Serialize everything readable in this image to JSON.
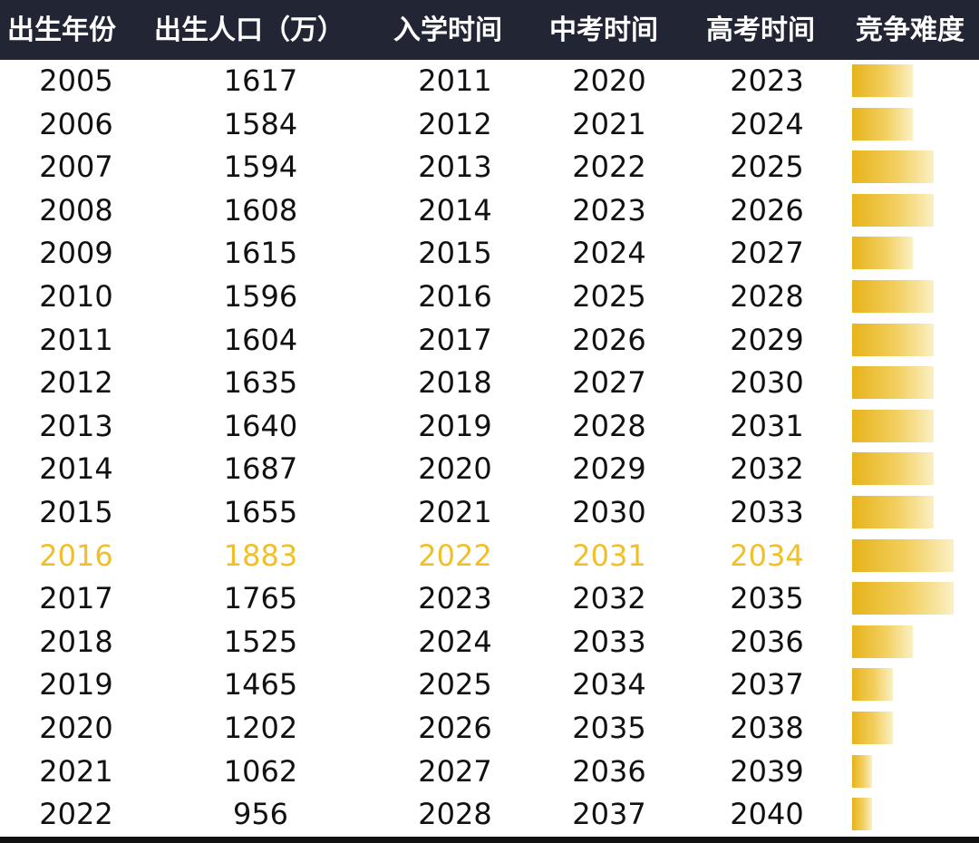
{
  "table": {
    "headers": [
      "出生年份",
      "出生人口（万）",
      "入学时间",
      "中考时间",
      "高考时间",
      "竞争难度"
    ]
  },
  "colors": {
    "header_bg": "#222634",
    "header_text": "#ffffff",
    "highlight_text": "#f0bf2a",
    "bar_gold": "#e7b31a"
  },
  "chart_data": {
    "type": "table",
    "columns": [
      "出生年份",
      "出生人口（万）",
      "入学时间",
      "中考时间",
      "高考时间",
      "竞争难度"
    ],
    "highlight_row": 11,
    "difficulty_max": 5,
    "rows": [
      {
        "birth_year": "2005",
        "population": "1617",
        "school": "2011",
        "zhongkao": "2020",
        "gaokao": "2023",
        "difficulty": 3
      },
      {
        "birth_year": "2006",
        "population": "1584",
        "school": "2012",
        "zhongkao": "2021",
        "gaokao": "2024",
        "difficulty": 3
      },
      {
        "birth_year": "2007",
        "population": "1594",
        "school": "2013",
        "zhongkao": "2022",
        "gaokao": "2025",
        "difficulty": 4
      },
      {
        "birth_year": "2008",
        "population": "1608",
        "school": "2014",
        "zhongkao": "2023",
        "gaokao": "2026",
        "difficulty": 4
      },
      {
        "birth_year": "2009",
        "population": "1615",
        "school": "2015",
        "zhongkao": "2024",
        "gaokao": "2027",
        "difficulty": 3
      },
      {
        "birth_year": "2010",
        "population": "1596",
        "school": "2016",
        "zhongkao": "2025",
        "gaokao": "2028",
        "difficulty": 4
      },
      {
        "birth_year": "2011",
        "population": "1604",
        "school": "2017",
        "zhongkao": "2026",
        "gaokao": "2029",
        "difficulty": 4
      },
      {
        "birth_year": "2012",
        "population": "1635",
        "school": "2018",
        "zhongkao": "2027",
        "gaokao": "2030",
        "difficulty": 4
      },
      {
        "birth_year": "2013",
        "population": "1640",
        "school": "2019",
        "zhongkao": "2028",
        "gaokao": "2031",
        "difficulty": 4
      },
      {
        "birth_year": "2014",
        "population": "1687",
        "school": "2020",
        "zhongkao": "2029",
        "gaokao": "2032",
        "difficulty": 4
      },
      {
        "birth_year": "2015",
        "population": "1655",
        "school": "2021",
        "zhongkao": "2030",
        "gaokao": "2033",
        "difficulty": 4
      },
      {
        "birth_year": "2016",
        "population": "1883",
        "school": "2022",
        "zhongkao": "2031",
        "gaokao": "2034",
        "difficulty": 5
      },
      {
        "birth_year": "2017",
        "population": "1765",
        "school": "2023",
        "zhongkao": "2032",
        "gaokao": "2035",
        "difficulty": 5
      },
      {
        "birth_year": "2018",
        "population": "1525",
        "school": "2024",
        "zhongkao": "2033",
        "gaokao": "2036",
        "difficulty": 3
      },
      {
        "birth_year": "2019",
        "population": "1465",
        "school": "2025",
        "zhongkao": "2034",
        "gaokao": "2037",
        "difficulty": 2
      },
      {
        "birth_year": "2020",
        "population": "1202",
        "school": "2026",
        "zhongkao": "2035",
        "gaokao": "2038",
        "difficulty": 2
      },
      {
        "birth_year": "2021",
        "population": "1062",
        "school": "2027",
        "zhongkao": "2036",
        "gaokao": "2039",
        "difficulty": 1
      },
      {
        "birth_year": "2022",
        "population": "956",
        "school": "2028",
        "zhongkao": "2037",
        "gaokao": "2040",
        "difficulty": 1
      }
    ]
  }
}
